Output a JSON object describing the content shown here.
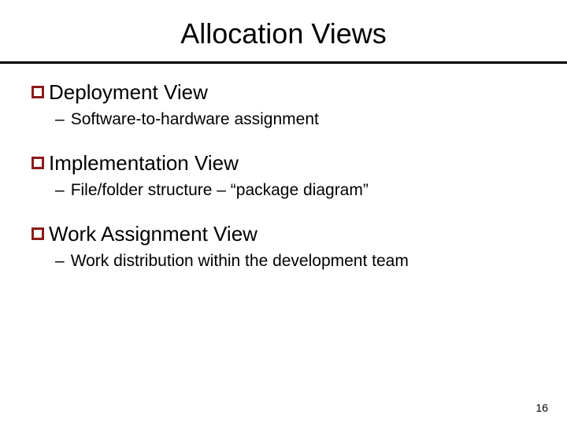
{
  "title": "Allocation Views",
  "rule_color": "#000000",
  "bullet_border_color": "#8b1a1a",
  "text_color": "#000000",
  "background_color": "#ffffff",
  "title_fontsize": 36,
  "l1_fontsize": 26,
  "l2_fontsize": 21,
  "sections": [
    {
      "heading": "Deployment View",
      "sub": "Software-to-hardware assignment"
    },
    {
      "heading": "Implementation View",
      "sub": "File/folder structure – “package diagram”"
    },
    {
      "heading": "Work Assignment View",
      "sub": "Work distribution within the development team"
    }
  ],
  "page_number": "16"
}
